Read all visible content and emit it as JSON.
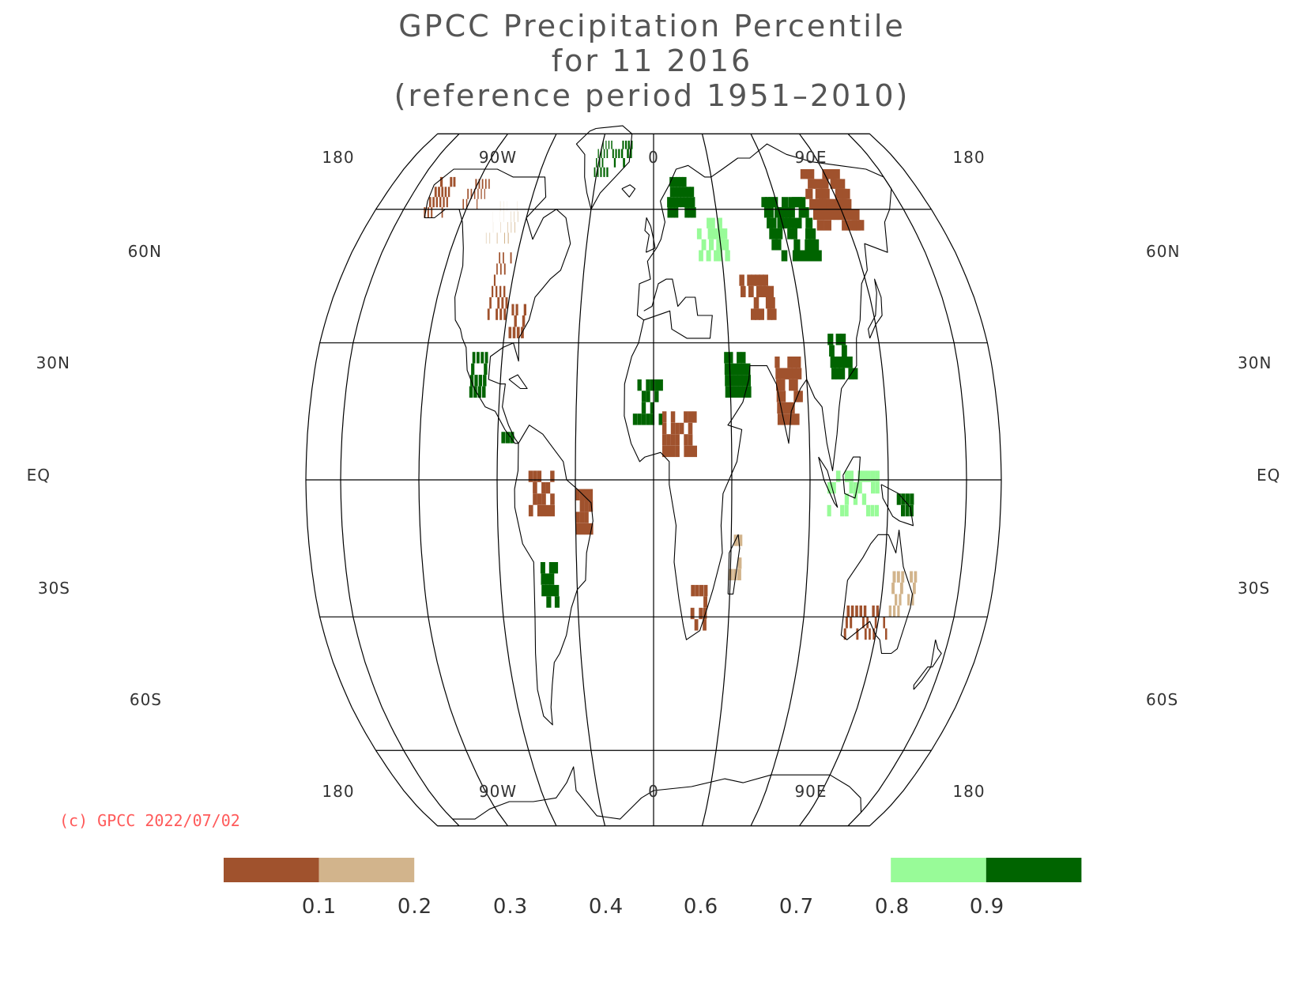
{
  "title": {
    "line1": "GPCC Precipitation Percentile",
    "line2": "for 11 2016",
    "line3": "(reference period 1951–2010)"
  },
  "copyright": "(c) GPCC 2022/07/02",
  "colors": {
    "very_dry": "#a0522d",
    "dry": "#d2b48c",
    "wet": "#98fb98",
    "very_wet": "#006400",
    "grid": "#000000",
    "copyright": "#ff5a5a"
  },
  "axes": {
    "lon_top": [
      "180",
      "90W",
      "0",
      "90E",
      "180"
    ],
    "lon_bottom": [
      "180",
      "90W",
      "0",
      "90E",
      "180"
    ],
    "lat_left": [
      "60N",
      "30N",
      "EQ",
      "30S",
      "60S"
    ],
    "lat_right": [
      "60N",
      "30N",
      "EQ",
      "30S",
      "60S"
    ]
  },
  "legend": {
    "ticks": [
      "0.1",
      "0.2",
      "0.3",
      "0.4",
      "0.6",
      "0.7",
      "0.8",
      "0.9"
    ],
    "bins": [
      {
        "from": 0.0,
        "to": 0.1,
        "color": "#a0522d"
      },
      {
        "from": 0.1,
        "to": 0.2,
        "color": "#d2b48c"
      },
      {
        "from": 0.8,
        "to": 0.9,
        "color": "#98fb98"
      },
      {
        "from": 0.9,
        "to": 1.0,
        "color": "#006400"
      }
    ]
  },
  "map_data": {
    "projection": "Robinson",
    "central_meridian": 0,
    "extent_lon": [
      -200,
      200
    ],
    "grid_lats": [
      60,
      30,
      0,
      -30,
      -60
    ],
    "grid_lons": [
      -180,
      -135,
      -90,
      -45,
      0,
      45,
      90,
      135,
      180
    ],
    "regions": [
      {
        "name": "Alaska west",
        "lon": [
          -165,
          -150
        ],
        "lat": [
          58,
          68
        ],
        "class": "very_dry"
      },
      {
        "name": "Yukon",
        "lon": [
          -140,
          -125
        ],
        "lat": [
          60,
          66
        ],
        "class": "very_dry"
      },
      {
        "name": "Canada central",
        "lon": [
          -115,
          -95
        ],
        "lat": [
          52,
          62
        ],
        "class": "dry"
      },
      {
        "name": "US central",
        "lon": [
          -105,
          -92
        ],
        "lat": [
          35,
          48
        ],
        "class": "very_dry"
      },
      {
        "name": "US southeast",
        "lon": [
          -88,
          -78
        ],
        "lat": [
          31,
          38
        ],
        "class": "very_dry"
      },
      {
        "name": "Mexico",
        "lon": [
          -108,
          -98
        ],
        "lat": [
          18,
          28
        ],
        "class": "very_wet"
      },
      {
        "name": "Central America",
        "lon": [
          -88,
          -78
        ],
        "lat": [
          8,
          12
        ],
        "class": "very_wet"
      },
      {
        "name": "Greenland south",
        "lon": [
          -48,
          -20
        ],
        "lat": [
          68,
          78
        ],
        "class": "very_wet"
      },
      {
        "name": "Amazon north",
        "lon": [
          -72,
          -58
        ],
        "lat": [
          -8,
          2
        ],
        "class": "very_dry"
      },
      {
        "name": "Brazil east",
        "lon": [
          -45,
          -35
        ],
        "lat": [
          -12,
          -4
        ],
        "class": "very_dry"
      },
      {
        "name": "Argentina north",
        "lon": [
          -66,
          -58
        ],
        "lat": [
          -28,
          -20
        ],
        "class": "very_wet"
      },
      {
        "name": "West Africa",
        "lon": [
          -12,
          5
        ],
        "lat": [
          12,
          20
        ],
        "class": "very_wet"
      },
      {
        "name": "Sahel",
        "lon": [
          5,
          25
        ],
        "lat": [
          5,
          15
        ],
        "class": "very_dry"
      },
      {
        "name": "Arabia",
        "lon": [
          42,
          55
        ],
        "lat": [
          18,
          26
        ],
        "class": "very_wet"
      },
      {
        "name": "Central Asia",
        "lon": [
          55,
          75
        ],
        "lat": [
          35,
          45
        ],
        "class": "very_dry"
      },
      {
        "name": "India",
        "lon": [
          72,
          86
        ],
        "lat": [
          12,
          26
        ],
        "class": "very_dry"
      },
      {
        "name": "Russia central",
        "lon": [
          80,
          110
        ],
        "lat": [
          48,
          62
        ],
        "class": "very_wet"
      },
      {
        "name": "Siberia east",
        "lon": [
          115,
          145
        ],
        "lat": [
          55,
          68
        ],
        "class": "very_dry"
      },
      {
        "name": "China south",
        "lon": [
          105,
          120
        ],
        "lat": [
          22,
          32
        ],
        "class": "very_wet"
      },
      {
        "name": "Indonesia",
        "lon": [
          100,
          130
        ],
        "lat": [
          -8,
          2
        ],
        "class": "wet"
      },
      {
        "name": "New Guinea",
        "lon": [
          140,
          150
        ],
        "lat": [
          -8,
          -3
        ],
        "class": "very_wet"
      },
      {
        "name": "Australia south",
        "lon": [
          115,
          145
        ],
        "lat": [
          -35,
          -28
        ],
        "class": "very_dry"
      },
      {
        "name": "Australia east",
        "lon": [
          140,
          153
        ],
        "lat": [
          -30,
          -20
        ],
        "class": "dry"
      },
      {
        "name": "South Africa",
        "lon": [
          22,
          32
        ],
        "lat": [
          -33,
          -25
        ],
        "class": "very_dry"
      },
      {
        "name": "Madagascar",
        "lon": [
          44,
          50
        ],
        "lat": [
          -22,
          -14
        ],
        "class": "dry"
      },
      {
        "name": "Europe north",
        "lon": [
          10,
          30
        ],
        "lat": [
          58,
          66
        ],
        "class": "very_wet"
      },
      {
        "name": "Europe east",
        "lon": [
          30,
          50
        ],
        "lat": [
          48,
          58
        ],
        "class": "wet"
      }
    ]
  }
}
